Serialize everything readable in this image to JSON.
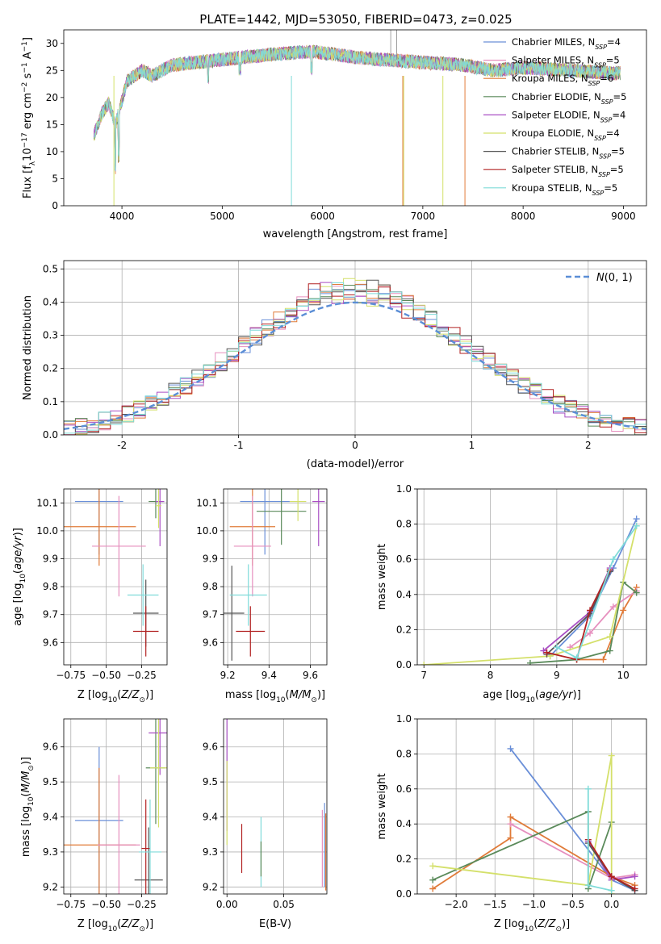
{
  "figure_title": "PLATE=1442, MJD=53050, FIBERID=0473, z=0.025",
  "colors": {
    "c1": "#6a8fd8",
    "c2": "#e07b39",
    "c3": "#e68fbe",
    "c4": "#5a8a5a",
    "c5": "#a94fc4",
    "c6": "#d4e06a",
    "c7": "#555555",
    "c8": "#b22222",
    "c9": "#7fdbd9",
    "model": "#5b8ed6"
  },
  "chart_data": [
    {
      "type": "line",
      "title": "PLATE=1442, MJD=53050, FIBERID=0473, z=0.025",
      "xlabel": "wavelength [Angstrom, rest frame]",
      "ylabel": "Flux [fλ10⁻¹⁷ erg cm⁻² s⁻¹ A⁻¹]",
      "xlim": [
        3420,
        9230
      ],
      "ylim": [
        0,
        32.5
      ],
      "xticks": [
        4000,
        5000,
        6000,
        7000,
        8000,
        9000
      ],
      "yticks": [
        0,
        5,
        10,
        15,
        20,
        25,
        30
      ],
      "legend_position": "top-right",
      "legend": [
        {
          "label": "Chabrier MILES, N",
          "sub": "SSP",
          "suffix": "=4",
          "color": "c1"
        },
        {
          "label": "Salpeter MILES, N",
          "sub": "SSP",
          "suffix": "=5",
          "color": "c3"
        },
        {
          "label": "Kroupa MILES, N",
          "sub": "SSP",
          "suffix": "=6",
          "color": "c2"
        },
        {
          "label": "Chabrier ELODIE, N",
          "sub": "SSP",
          "suffix": "=5",
          "color": "c4"
        },
        {
          "label": "Salpeter ELODIE, N",
          "sub": "SSP",
          "suffix": "=4",
          "color": "c5"
        },
        {
          "label": "Kroupa ELODIE, N",
          "sub": "SSP",
          "suffix": "=4",
          "color": "c6"
        },
        {
          "label": "Chabrier STELIB, N",
          "sub": "SSP",
          "suffix": "=5",
          "color": "c7"
        },
        {
          "label": "Salpeter STELIB, N",
          "sub": "SSP",
          "suffix": "=5",
          "color": "c8"
        },
        {
          "label": "Kroupa STELIB, N",
          "sub": "SSP",
          "suffix": "=5",
          "color": "c9"
        }
      ],
      "spectrum_anchors": [
        [
          3720,
          13
        ],
        [
          3800,
          17
        ],
        [
          3870,
          19
        ],
        [
          3935,
          15
        ],
        [
          3980,
          18
        ],
        [
          4050,
          23
        ],
        [
          4200,
          25
        ],
        [
          4300,
          24
        ],
        [
          4500,
          26
        ],
        [
          5000,
          27
        ],
        [
          5500,
          28
        ],
        [
          5900,
          28.5
        ],
        [
          6300,
          27.5
        ],
        [
          6600,
          27
        ],
        [
          7000,
          26.5
        ],
        [
          7400,
          26
        ],
        [
          7700,
          25
        ],
        [
          8000,
          25.5
        ],
        [
          8500,
          25
        ],
        [
          8900,
          24.5
        ]
      ]
    },
    {
      "type": "bar",
      "xlabel": "(data-model)/error",
      "ylabel": "Normed distribution",
      "xlim": [
        -2.5,
        2.5
      ],
      "ylim": [
        0,
        0.525
      ],
      "xticks": [
        -2,
        -1,
        0,
        1,
        2
      ],
      "yticks": [
        0.0,
        0.1,
        0.2,
        0.3,
        0.4,
        0.5
      ],
      "legend_position": "top-right",
      "legend_label": "N(0, 1)",
      "bin_width": 0.1
    },
    {
      "type": "scatter",
      "xlabel": "Z [log10(Z/Z⊙)]",
      "ylabel": "age  [log10(age/yr)]",
      "xlim": [
        -0.8,
        -0.07
      ],
      "ylim": [
        9.52,
        10.15
      ],
      "xticks": [
        -0.75,
        -0.5,
        -0.25
      ],
      "xtick_labels": [
        "−0.75",
        "−0.50",
        "−0.25"
      ],
      "yticks": [
        9.6,
        9.7,
        9.8,
        9.9,
        10.0,
        10.1
      ],
      "points": [
        {
          "x": -0.55,
          "y": 10.105,
          "xe": 0.17,
          "ye": 0.19,
          "color": "c1"
        },
        {
          "x": -0.55,
          "y": 10.015,
          "xe": 0.26,
          "ye": 0.14,
          "color": "c2"
        },
        {
          "x": -0.41,
          "y": 9.945,
          "xe": 0.19,
          "ye": 0.18,
          "color": "c3"
        },
        {
          "x": -0.15,
          "y": 10.105,
          "xe": 0.05,
          "ye": 0.06,
          "color": "c4"
        },
        {
          "x": -0.12,
          "y": 10.105,
          "xe": 0.03,
          "ye": 0.16,
          "color": "c5"
        },
        {
          "x": -0.13,
          "y": 10.09,
          "xe": 0.02,
          "ye": 0.08,
          "color": "c6"
        },
        {
          "x": -0.22,
          "y": 9.705,
          "xe": 0.09,
          "ye": 0.12,
          "color": "c7"
        },
        {
          "x": -0.22,
          "y": 9.64,
          "xe": 0.09,
          "ye": 0.09,
          "color": "c8"
        },
        {
          "x": -0.24,
          "y": 9.77,
          "xe": 0.11,
          "ye": 0.11,
          "color": "c9"
        }
      ]
    },
    {
      "type": "scatter",
      "xlabel": "mass [log10(M/M⊙)]",
      "ylabel": "",
      "xlim": [
        9.18,
        9.68
      ],
      "ylim": [
        9.52,
        10.15
      ],
      "xticks": [
        9.2,
        9.4,
        9.6
      ],
      "xtick_labels": [
        "9.2",
        "9.4",
        "9.6"
      ],
      "yticks": [
        9.6,
        9.7,
        9.8,
        9.9,
        10.0,
        10.1
      ],
      "points": [
        {
          "x": 9.38,
          "y": 10.105,
          "xe": 0.12,
          "ye": 0.19,
          "color": "c1"
        },
        {
          "x": 9.32,
          "y": 10.015,
          "xe": 0.11,
          "ye": 0.14,
          "color": "c2"
        },
        {
          "x": 9.32,
          "y": 9.945,
          "xe": 0.09,
          "ye": 0.18,
          "color": "c3"
        },
        {
          "x": 9.46,
          "y": 10.07,
          "xe": 0.12,
          "ye": 0.12,
          "color": "c4"
        },
        {
          "x": 9.64,
          "y": 10.105,
          "xe": 0.03,
          "ye": 0.16,
          "color": "c5"
        },
        {
          "x": 9.54,
          "y": 10.105,
          "xe": 0.04,
          "ye": 0.07,
          "color": "c6"
        },
        {
          "x": 9.22,
          "y": 9.705,
          "xe": 0.06,
          "ye": 0.17,
          "color": "c7"
        },
        {
          "x": 9.31,
          "y": 9.64,
          "xe": 0.07,
          "ye": 0.09,
          "color": "c8"
        },
        {
          "x": 9.3,
          "y": 9.77,
          "xe": 0.09,
          "ye": 0.11,
          "color": "c9"
        }
      ]
    },
    {
      "type": "line",
      "xlabel": "age  [log10(age/yr)]",
      "ylabel": "mass weight",
      "xlim": [
        6.9,
        10.35
      ],
      "ylim": [
        0,
        1.0
      ],
      "xticks": [
        7,
        8,
        9,
        10
      ],
      "xtick_labels": [
        "7",
        "8",
        "9",
        "10"
      ],
      "yticks": [
        0.0,
        0.2,
        0.4,
        0.6,
        0.8,
        1.0
      ],
      "series": [
        {
          "color": "c1",
          "x": [
            8.9,
            9.5,
            9.85,
            10.2
          ],
          "y": [
            0.05,
            0.28,
            0.55,
            0.83
          ]
        },
        {
          "color": "c2",
          "x": [
            9.3,
            9.7,
            10.0,
            10.2
          ],
          "y": [
            0.03,
            0.03,
            0.31,
            0.44
          ]
        },
        {
          "color": "c3",
          "x": [
            9.2,
            9.5,
            9.85,
            10.2
          ],
          "y": [
            0.1,
            0.18,
            0.33,
            0.42
          ]
        },
        {
          "color": "c4",
          "x": [
            8.6,
            9.3,
            9.8,
            10.0,
            10.2
          ],
          "y": [
            0.01,
            0.03,
            0.08,
            0.47,
            0.41
          ]
        },
        {
          "color": "c5",
          "x": [
            8.8,
            9.5,
            9.8
          ],
          "y": [
            0.08,
            0.3,
            0.55
          ]
        },
        {
          "color": "c6",
          "x": [
            7.0,
            8.9,
            9.8,
            10.2
          ],
          "y": [
            0.0,
            0.05,
            0.16,
            0.79
          ]
        },
        {
          "color": "c7",
          "x": [
            8.85,
            9.5,
            9.8
          ],
          "y": [
            0.06,
            0.29,
            0.53
          ]
        },
        {
          "color": "c8",
          "x": [
            8.85,
            9.3,
            9.5,
            9.8
          ],
          "y": [
            0.07,
            0.03,
            0.31,
            0.54
          ]
        },
        {
          "color": "c9",
          "x": [
            9.0,
            9.3,
            9.85,
            10.2
          ],
          "y": [
            0.1,
            0.04,
            0.6,
            0.79
          ]
        }
      ]
    },
    {
      "type": "scatter",
      "xlabel": "Z [log10(Z/Z⊙)]",
      "ylabel": "mass [log10(M/M⊙)]",
      "xlim": [
        -0.8,
        -0.07
      ],
      "ylim": [
        9.18,
        9.68
      ],
      "xticks": [
        -0.75,
        -0.5,
        -0.25
      ],
      "xtick_labels": [
        "−0.75",
        "−0.50",
        "−0.25"
      ],
      "yticks": [
        9.2,
        9.3,
        9.4,
        9.5,
        9.6
      ],
      "points": [
        {
          "x": -0.55,
          "y": 9.39,
          "xe": 0.17,
          "ye": 0.21,
          "color": "c1"
        },
        {
          "x": -0.55,
          "y": 9.32,
          "xe": 0.26,
          "ye": 0.22,
          "color": "c2"
        },
        {
          "x": -0.41,
          "y": 9.32,
          "xe": 0.15,
          "ye": 0.2,
          "color": "c3"
        },
        {
          "x": -0.15,
          "y": 9.54,
          "xe": 0.07,
          "ye": 0.16,
          "color": "c4"
        },
        {
          "x": -0.12,
          "y": 9.64,
          "xe": 0.08,
          "ye": 0.12,
          "color": "c5"
        },
        {
          "x": -0.13,
          "y": 9.54,
          "xe": 0.06,
          "ye": 0.17,
          "color": "c6"
        },
        {
          "x": -0.2,
          "y": 9.22,
          "xe": 0.1,
          "ye": 0.15,
          "color": "c7"
        },
        {
          "x": -0.22,
          "y": 9.31,
          "xe": 0.03,
          "ye": 0.14,
          "color": "c8"
        },
        {
          "x": -0.19,
          "y": 9.3,
          "xe": 0.08,
          "ye": 0.15,
          "color": "c9"
        }
      ]
    },
    {
      "type": "scatter",
      "xlabel": "E(B-V)",
      "ylabel": "",
      "xlim": [
        -0.003,
        0.088
      ],
      "ylim": [
        9.18,
        9.68
      ],
      "xticks": [
        0.0,
        0.05
      ],
      "xtick_labels": [
        "0.00",
        "0.05"
      ],
      "yticks": [
        9.2,
        9.3,
        9.4,
        9.5,
        9.6
      ],
      "points": [
        {
          "x": 0.0,
          "y": 9.54,
          "xe": 0,
          "ye": 0.18,
          "color": "c5"
        },
        {
          "x": 0.0,
          "y": 9.44,
          "xe": 0,
          "ye": 0.12,
          "color": "c6"
        },
        {
          "x": 0.013,
          "y": 9.31,
          "xe": 0,
          "ye": 0.07,
          "color": "c8"
        },
        {
          "x": 0.03,
          "y": 9.3,
          "xe": 0,
          "ye": 0.1,
          "color": "c9"
        },
        {
          "x": 0.03,
          "y": 9.28,
          "xe": 0,
          "ye": 0.05,
          "color": "c4"
        },
        {
          "x": 0.084,
          "y": 9.31,
          "xe": 0,
          "ye": 0.11,
          "color": "c3"
        },
        {
          "x": 0.086,
          "y": 9.32,
          "xe": 0,
          "ye": 0.12,
          "color": "c1"
        },
        {
          "x": 0.087,
          "y": 9.3,
          "xe": 0,
          "ye": 0.11,
          "color": "c2"
        }
      ]
    },
    {
      "type": "line",
      "xlabel": "Z [log10(Z/Z⊙)]",
      "ylabel": "mass weight",
      "xlim": [
        -2.5,
        0.45
      ],
      "ylim": [
        0,
        1.0
      ],
      "xticks": [
        -2.0,
        -1.5,
        -1.0,
        -0.5,
        0.0
      ],
      "xtick_labels": [
        "−2.0",
        "−1.5",
        "−1.0",
        "−0.5",
        "0.0"
      ],
      "yticks": [
        0.0,
        0.2,
        0.4,
        0.6,
        0.8,
        1.0
      ],
      "series": [
        {
          "color": "c1",
          "x": [
            -1.3,
            0.0,
            0.3
          ],
          "y": [
            0.83,
            0.08,
            0.02
          ]
        },
        {
          "color": "c2",
          "x": [
            -2.3,
            -1.3,
            -1.3,
            0.0,
            0.3
          ],
          "y": [
            0.03,
            0.32,
            0.44,
            0.1,
            0.05
          ]
        },
        {
          "color": "c3",
          "x": [
            -1.3,
            0.0,
            0.3
          ],
          "y": [
            0.4,
            0.09,
            0.11
          ]
        },
        {
          "color": "c4",
          "x": [
            -2.3,
            -0.3,
            -0.3,
            0.0
          ],
          "y": [
            0.08,
            0.47,
            0.03,
            0.41
          ]
        },
        {
          "color": "c5",
          "x": [
            -0.3,
            0.0,
            0.3
          ],
          "y": [
            0.3,
            0.08,
            0.1
          ]
        },
        {
          "color": "c6",
          "x": [
            -2.3,
            -0.3,
            0.0,
            0.0
          ],
          "y": [
            0.16,
            0.05,
            0.79,
            0.0
          ]
        },
        {
          "color": "c7",
          "x": [
            -0.3,
            0.0,
            0.3
          ],
          "y": [
            0.29,
            0.1,
            0.02
          ]
        },
        {
          "color": "c8",
          "x": [
            -0.3,
            0.0,
            0.3
          ],
          "y": [
            0.31,
            0.1,
            0.03
          ]
        },
        {
          "color": "c9",
          "x": [
            -0.3,
            -0.3,
            0.0
          ],
          "y": [
            0.6,
            0.05,
            0.02
          ]
        }
      ]
    }
  ]
}
